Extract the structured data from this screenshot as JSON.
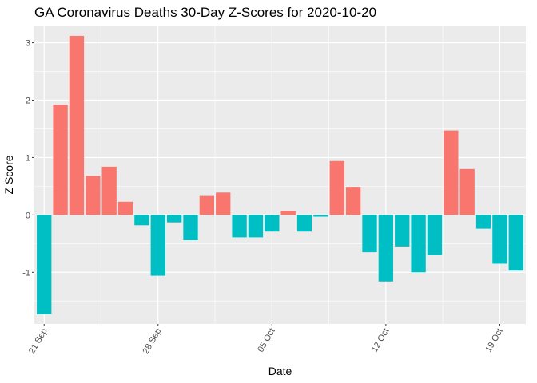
{
  "chart_data": {
    "type": "bar",
    "title": "GA Coronavirus Deaths 30-Day Z-Scores for 2020-10-20",
    "xlabel": "Date",
    "ylabel": "Z Score",
    "x": [
      "2020-09-21",
      "2020-09-22",
      "2020-09-23",
      "2020-09-24",
      "2020-09-25",
      "2020-09-26",
      "2020-09-27",
      "2020-09-28",
      "2020-09-29",
      "2020-09-30",
      "2020-10-01",
      "2020-10-02",
      "2020-10-03",
      "2020-10-04",
      "2020-10-05",
      "2020-10-06",
      "2020-10-07",
      "2020-10-08",
      "2020-10-09",
      "2020-10-10",
      "2020-10-11",
      "2020-10-12",
      "2020-10-13",
      "2020-10-14",
      "2020-10-15",
      "2020-10-16",
      "2020-10-17",
      "2020-10-18",
      "2020-10-19",
      "2020-10-20"
    ],
    "values": [
      -1.73,
      1.92,
      3.12,
      0.68,
      0.84,
      0.23,
      -0.18,
      -1.06,
      -0.13,
      -0.44,
      0.33,
      0.39,
      -0.39,
      -0.39,
      -0.29,
      0.07,
      -0.29,
      -0.03,
      0.94,
      0.49,
      -0.65,
      -1.16,
      -0.55,
      -1.0,
      -0.7,
      1.47,
      0.8,
      -0.24,
      -0.85,
      -0.97
    ],
    "xticks": [
      {
        "date": "2020-09-21",
        "label": "21 Sep"
      },
      {
        "date": "2020-09-28",
        "label": "28 Sep"
      },
      {
        "date": "2020-10-05",
        "label": "05 Oct"
      },
      {
        "date": "2020-10-12",
        "label": "12 Oct"
      },
      {
        "date": "2020-10-19",
        "label": "19 Oct"
      }
    ],
    "yticks": [
      -1,
      0,
      1,
      2,
      3
    ],
    "ylim": [
      -1.9,
      3.3
    ],
    "colors": {
      "positive": "#F8766D",
      "negative": "#00BFC4",
      "panel": "#EBEBEB",
      "grid": "#FFFFFF",
      "text": "#4D4D4D"
    },
    "grid": true,
    "legend": "none"
  }
}
